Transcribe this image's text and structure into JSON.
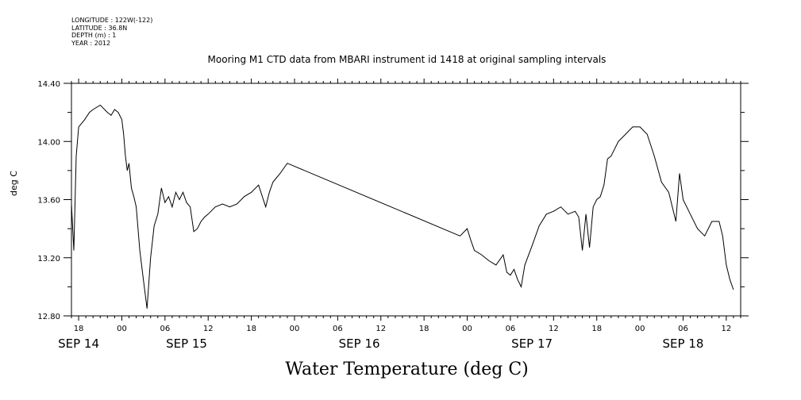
{
  "meta": {
    "longitude": "LONGITUDE : 122W(-122)",
    "latitude": "LATITUDE : 36.8N",
    "depth": "DEPTH (m) : 1",
    "year": "YEAR : 2012"
  },
  "chart_data": {
    "type": "line",
    "title": "Mooring M1 CTD data from MBARI instrument id 1418 at original sampling intervals",
    "xlabel": "Water Temperature (deg C)",
    "ylabel": "deg C",
    "ylim": [
      12.8,
      14.4
    ],
    "y_ticks": [
      "12.80",
      "13.20",
      "13.60",
      "14.00",
      "14.40"
    ],
    "x_ticks": [
      {
        "t": "2012-09-14T18:00",
        "label": "18"
      },
      {
        "t": "2012-09-15T00:00",
        "label": "00"
      },
      {
        "t": "2012-09-15T06:00",
        "label": "06"
      },
      {
        "t": "2012-09-15T12:00",
        "label": "12"
      },
      {
        "t": "2012-09-15T18:00",
        "label": "18"
      },
      {
        "t": "2012-09-16T00:00",
        "label": "00"
      },
      {
        "t": "2012-09-16T06:00",
        "label": "06"
      },
      {
        "t": "2012-09-16T12:00",
        "label": "12"
      },
      {
        "t": "2012-09-16T18:00",
        "label": "18"
      },
      {
        "t": "2012-09-17T00:00",
        "label": "00"
      },
      {
        "t": "2012-09-17T06:00",
        "label": "06"
      },
      {
        "t": "2012-09-17T12:00",
        "label": "12"
      },
      {
        "t": "2012-09-17T18:00",
        "label": "18"
      },
      {
        "t": "2012-09-18T00:00",
        "label": "00"
      },
      {
        "t": "2012-09-18T06:00",
        "label": "06"
      },
      {
        "t": "2012-09-18T12:00",
        "label": "12"
      }
    ],
    "day_labels": [
      {
        "t": "2012-09-14T18:00",
        "label": "SEP 14"
      },
      {
        "t": "2012-09-15T09:00",
        "label": "SEP 15"
      },
      {
        "t": "2012-09-16T09:00",
        "label": "SEP 16"
      },
      {
        "t": "2012-09-17T09:00",
        "label": "SEP 17"
      },
      {
        "t": "2012-09-18T06:00",
        "label": "SEP 18"
      }
    ],
    "xlim": [
      "2012-09-14T17:00",
      "2012-09-18T14:00"
    ],
    "series": [
      {
        "x": [
          "2012-09-14T17:00",
          "2012-09-14T17:20",
          "2012-09-14T17:40",
          "2012-09-14T18:00",
          "2012-09-14T18:20",
          "2012-09-14T18:50",
          "2012-09-14T19:30",
          "2012-09-14T20:00",
          "2012-09-14T21:00",
          "2012-09-14T22:00",
          "2012-09-14T22:30",
          "2012-09-14T23:00",
          "2012-09-14T23:30",
          "2012-09-15T00:00",
          "2012-09-15T00:15",
          "2012-09-15T00:30",
          "2012-09-15T00:45",
          "2012-09-15T01:00",
          "2012-09-15T01:20",
          "2012-09-15T01:40",
          "2012-09-15T02:00",
          "2012-09-15T02:30",
          "2012-09-15T03:00",
          "2012-09-15T03:30",
          "2012-09-15T04:00",
          "2012-09-15T04:30",
          "2012-09-15T05:00",
          "2012-09-15T05:30",
          "2012-09-15T06:00",
          "2012-09-15T06:30",
          "2012-09-15T07:00",
          "2012-09-15T07:30",
          "2012-09-15T08:00",
          "2012-09-15T08:30",
          "2012-09-15T09:00",
          "2012-09-15T09:30",
          "2012-09-15T10:00",
          "2012-09-15T10:30",
          "2012-09-15T11:00",
          "2012-09-15T11:30",
          "2012-09-15T12:00",
          "2012-09-15T13:00",
          "2012-09-15T14:00",
          "2012-09-15T15:00",
          "2012-09-15T16:00",
          "2012-09-15T17:00",
          "2012-09-15T18:00",
          "2012-09-15T19:00",
          "2012-09-15T20:00",
          "2012-09-15T20:30",
          "2012-09-15T21:00",
          "2012-09-15T21:30",
          "2012-09-15T22:00",
          "2012-09-15T23:00",
          "2012-09-16T23:00",
          "2012-09-17T00:00",
          "2012-09-17T00:30",
          "2012-09-17T01:00",
          "2012-09-17T02:00",
          "2012-09-17T03:00",
          "2012-09-17T04:00",
          "2012-09-17T05:00",
          "2012-09-17T05:30",
          "2012-09-17T06:00",
          "2012-09-17T06:30",
          "2012-09-17T07:00",
          "2012-09-17T07:30",
          "2012-09-17T08:00",
          "2012-09-17T09:00",
          "2012-09-17T10:00",
          "2012-09-17T11:00",
          "2012-09-17T12:00",
          "2012-09-17T13:00",
          "2012-09-17T14:00",
          "2012-09-17T15:00",
          "2012-09-17T15:30",
          "2012-09-17T16:00",
          "2012-09-17T16:30",
          "2012-09-17T17:00",
          "2012-09-17T17:30",
          "2012-09-17T18:00",
          "2012-09-17T18:30",
          "2012-09-17T19:00",
          "2012-09-17T19:30",
          "2012-09-17T20:00",
          "2012-09-17T21:00",
          "2012-09-17T22:00",
          "2012-09-17T23:00",
          "2012-09-18T00:00",
          "2012-09-18T01:00",
          "2012-09-18T02:00",
          "2012-09-18T03:00",
          "2012-09-18T04:00",
          "2012-09-18T04:30",
          "2012-09-18T05:00",
          "2012-09-18T05:30",
          "2012-09-18T06:00",
          "2012-09-18T07:00",
          "2012-09-18T08:00",
          "2012-09-18T09:00",
          "2012-09-18T10:00",
          "2012-09-18T11:00",
          "2012-09-18T11:30",
          "2012-09-18T12:00",
          "2012-09-18T12:30",
          "2012-09-18T13:00"
        ],
        "y": [
          13.57,
          13.25,
          13.9,
          14.1,
          14.12,
          14.15,
          14.2,
          14.22,
          14.25,
          14.2,
          14.18,
          14.22,
          14.2,
          14.15,
          14.05,
          13.9,
          13.8,
          13.85,
          13.68,
          13.62,
          13.55,
          13.25,
          13.05,
          12.85,
          13.2,
          13.42,
          13.5,
          13.68,
          13.58,
          13.62,
          13.55,
          13.65,
          13.6,
          13.65,
          13.58,
          13.55,
          13.38,
          13.4,
          13.45,
          13.48,
          13.5,
          13.55,
          13.57,
          13.55,
          13.57,
          13.62,
          13.65,
          13.7,
          13.55,
          13.65,
          13.72,
          13.75,
          13.78,
          13.85,
          13.35,
          13.4,
          13.32,
          13.25,
          13.22,
          13.18,
          13.15,
          13.22,
          13.1,
          13.08,
          13.12,
          13.05,
          13.0,
          13.15,
          13.28,
          13.42,
          13.5,
          13.52,
          13.55,
          13.5,
          13.52,
          13.48,
          13.25,
          13.5,
          13.27,
          13.55,
          13.6,
          13.62,
          13.7,
          13.88,
          13.9,
          14.0,
          14.05,
          14.1,
          14.1,
          14.05,
          13.9,
          13.72,
          13.65,
          13.55,
          13.45,
          13.78,
          13.6,
          13.5,
          13.4,
          13.35,
          13.45,
          13.45,
          13.35,
          13.15,
          13.05,
          12.98
        ]
      }
    ]
  }
}
